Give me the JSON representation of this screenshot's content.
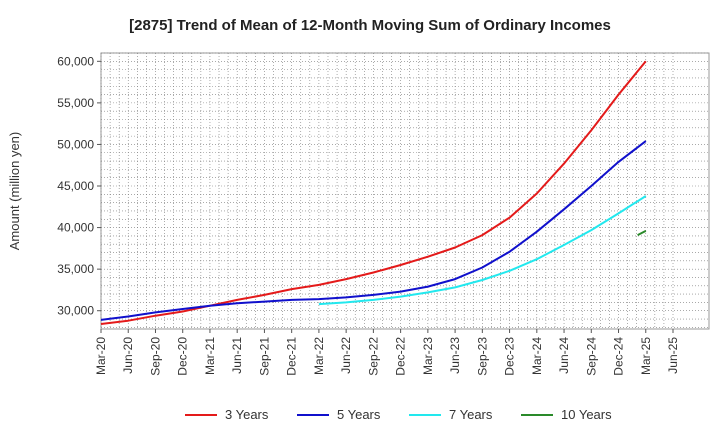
{
  "chart_data": {
    "type": "line",
    "title": "[2875]  Trend of Mean of 12-Month Moving Sum of Ordinary Incomes",
    "xlabel": "",
    "ylabel": "Amount (million yen)",
    "ylim": [
      27800,
      61000
    ],
    "y_ticks": [
      30000,
      35000,
      40000,
      45000,
      50000,
      55000,
      60000
    ],
    "y_tick_labels": [
      "30,000",
      "35,000",
      "40,000",
      "45,000",
      "50,000",
      "55,000",
      "60,000"
    ],
    "x_tick_labels": [
      "Mar-20",
      "Jun-20",
      "Sep-20",
      "Dec-20",
      "Mar-21",
      "Jun-21",
      "Sep-21",
      "Dec-21",
      "Mar-22",
      "Jun-22",
      "Sep-22",
      "Dec-22",
      "Mar-23",
      "Jun-23",
      "Sep-23",
      "Dec-23",
      "Mar-24",
      "Jun-24",
      "Sep-24",
      "Dec-24",
      "Mar-25",
      "Jun-25"
    ],
    "x_quarters": [
      0,
      1,
      2,
      3,
      4,
      5,
      6,
      7,
      8,
      9,
      10,
      11,
      12,
      13,
      14,
      15,
      16,
      17,
      18,
      19,
      20,
      21
    ],
    "grid": true,
    "legend_position": "bottom",
    "series": [
      {
        "name": "3 Years",
        "color": "#e41a1a",
        "x": [
          0,
          1,
          2,
          3,
          4,
          5,
          6,
          7,
          8,
          9,
          10,
          11,
          12,
          13,
          14,
          15,
          16,
          17,
          18,
          19,
          20
        ],
        "values": [
          28400,
          28800,
          29400,
          29900,
          30600,
          31300,
          31900,
          32600,
          33100,
          33800,
          34600,
          35500,
          36500,
          37600,
          39100,
          41200,
          44100,
          47700,
          51700,
          56000,
          60000
        ]
      },
      {
        "name": "5 Years",
        "color": "#1010cc",
        "x": [
          0,
          1,
          2,
          3,
          4,
          5,
          6,
          7,
          8,
          9,
          10,
          11,
          12,
          13,
          14,
          15,
          16,
          17,
          18,
          19,
          20
        ],
        "values": [
          28900,
          29300,
          29800,
          30200,
          30600,
          30900,
          31100,
          31300,
          31400,
          31600,
          31900,
          32300,
          32900,
          33800,
          35200,
          37100,
          39500,
          42200,
          45000,
          47900,
          50400
        ]
      },
      {
        "name": "7 Years",
        "color": "#22e8ee",
        "x": [
          8,
          9,
          10,
          11,
          12,
          13,
          14,
          15,
          16,
          17,
          18,
          19,
          20
        ],
        "values": [
          30800,
          31000,
          31300,
          31700,
          32200,
          32800,
          33700,
          34800,
          36200,
          37900,
          39700,
          41700,
          43800
        ]
      },
      {
        "name": "10 Years",
        "color": "#2a8a2a",
        "x": [
          19.7,
          20
        ],
        "values": [
          39100,
          39600
        ]
      }
    ]
  }
}
